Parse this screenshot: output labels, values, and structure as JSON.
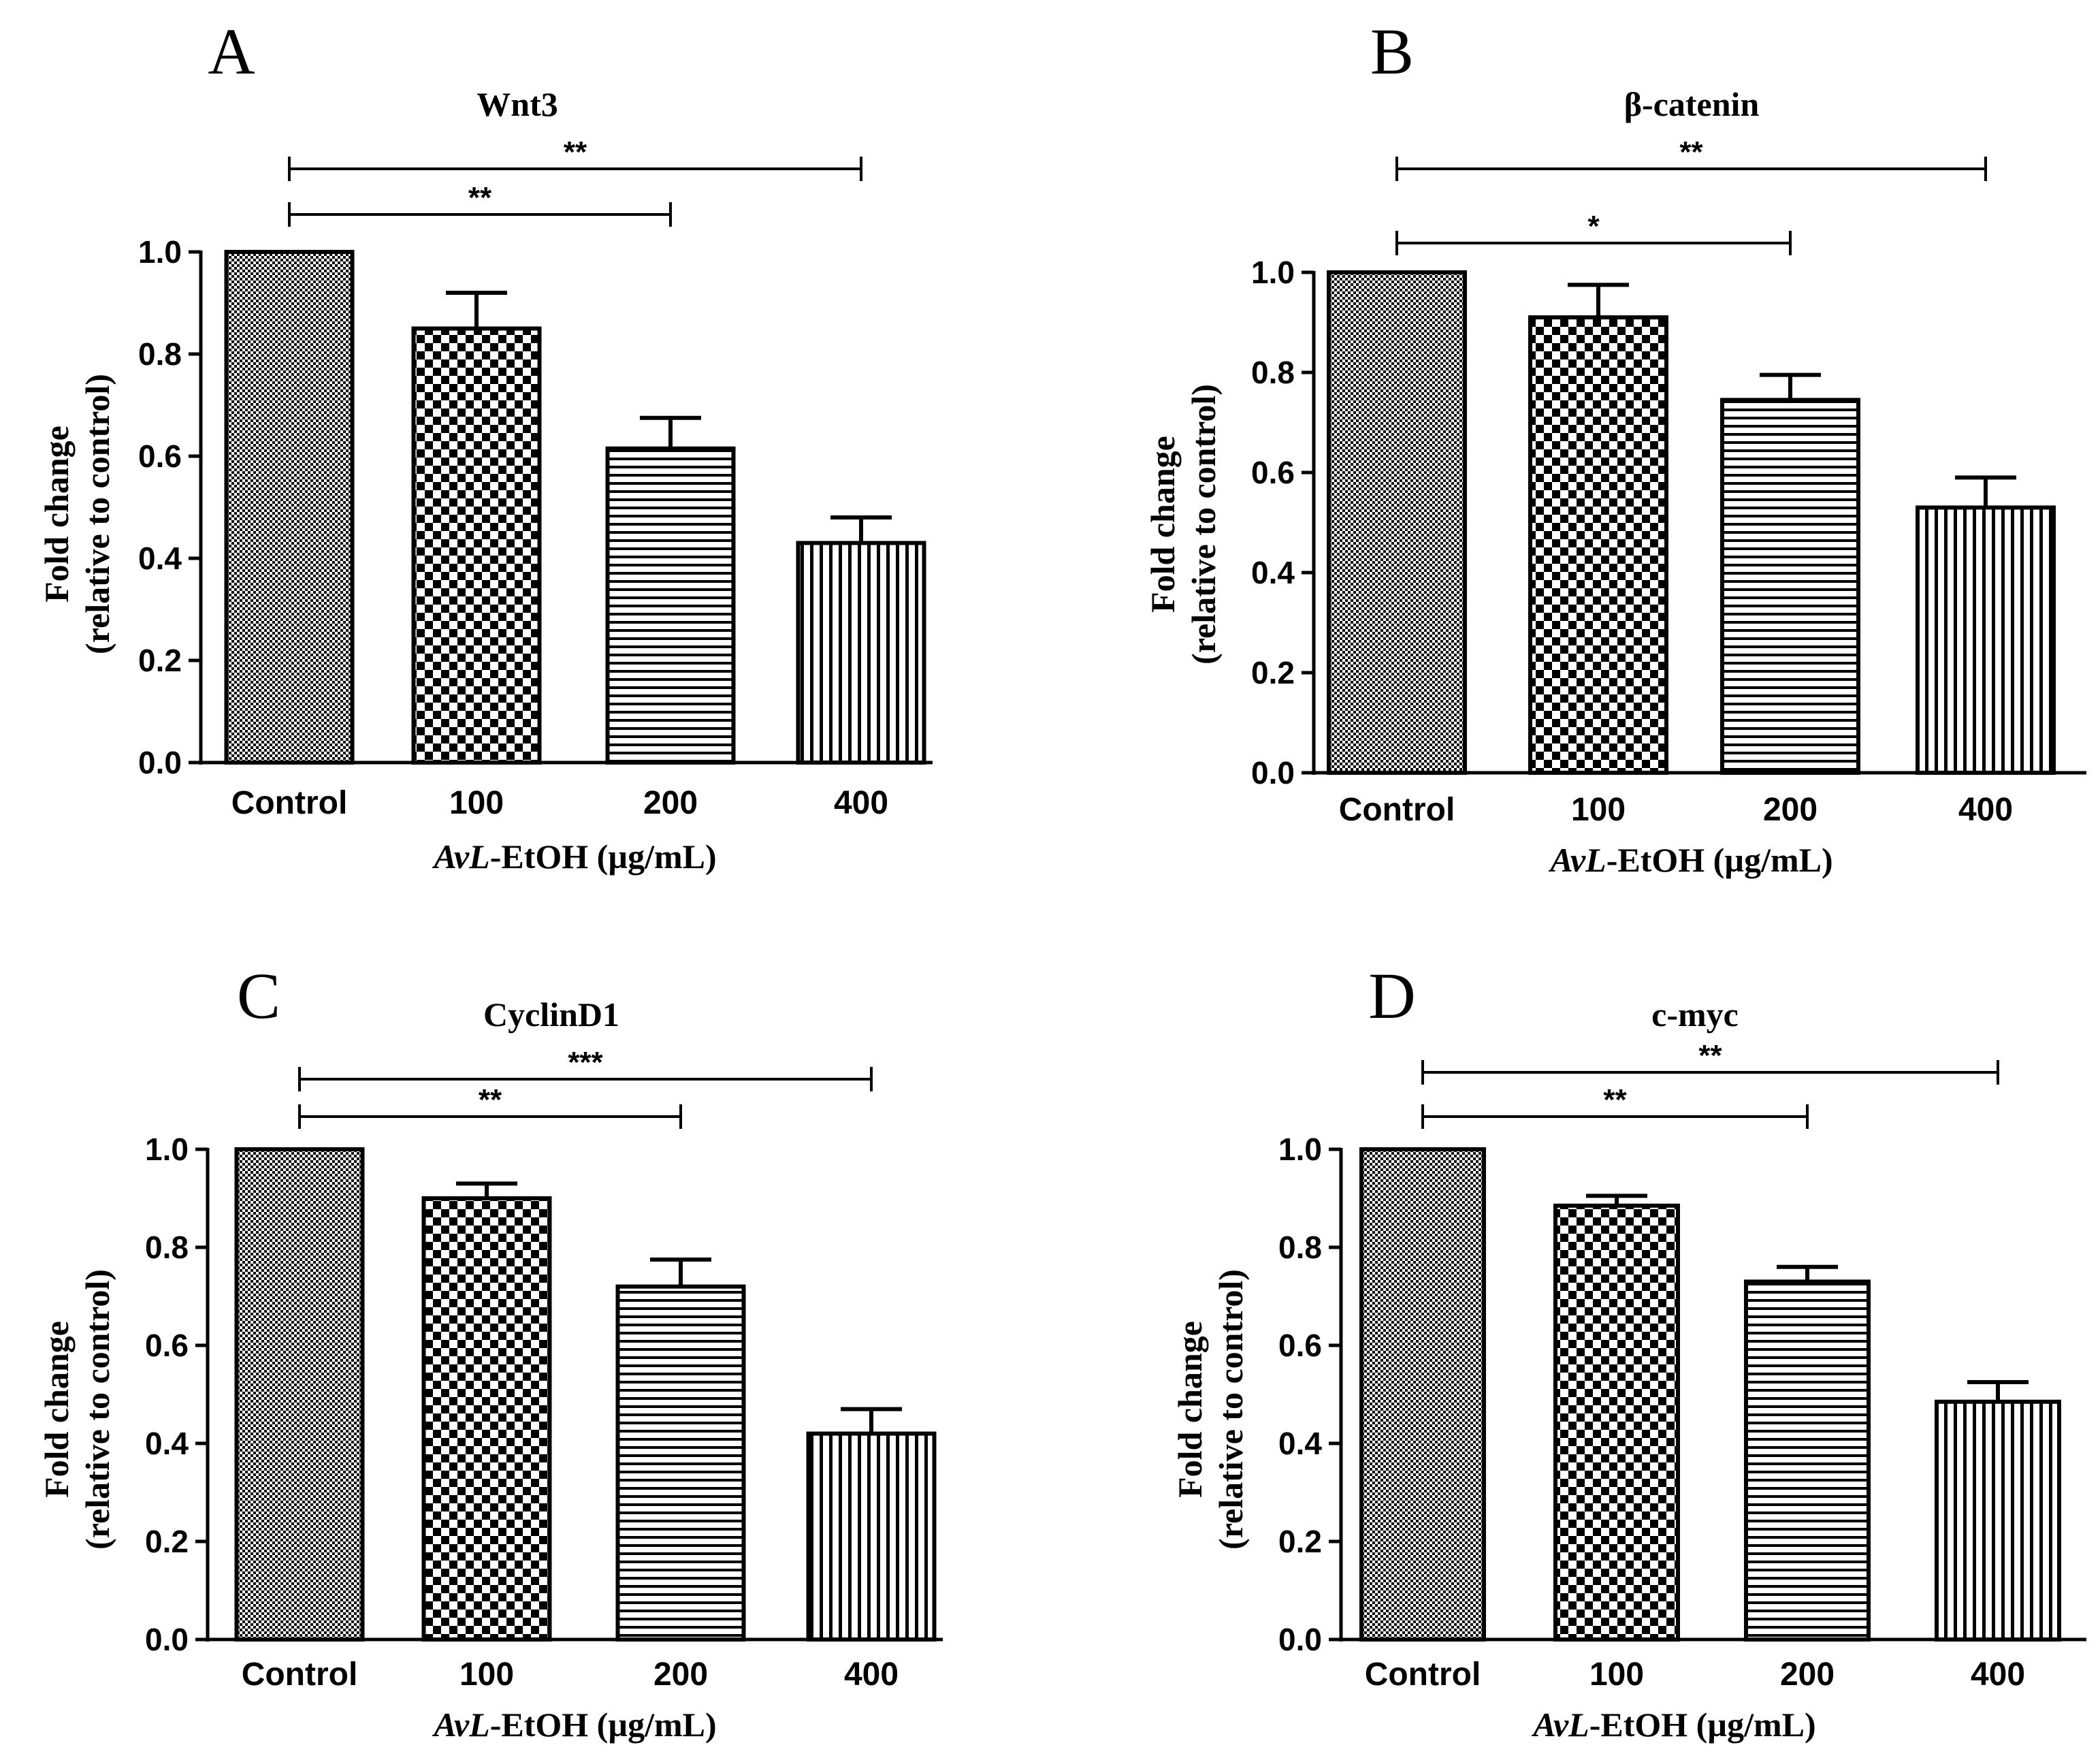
{
  "figure": {
    "background": "#ffffff",
    "bar_stroke_color": "#000000"
  },
  "chart_data": [
    {
      "panel": "A",
      "type": "bar",
      "title": "Wnt3",
      "categories": [
        "Control",
        "100",
        "200",
        "400"
      ],
      "values": [
        1.0,
        0.85,
        0.615,
        0.43
      ],
      "errors": [
        0.0,
        0.07,
        0.06,
        0.05
      ],
      "patterns": [
        "fine-checker",
        "checker",
        "horizontal-stripes",
        "vertical-stripes"
      ],
      "ylim": [
        0,
        1.0
      ],
      "yticks": [
        "0.0",
        "0.2",
        "0.4",
        "0.6",
        "0.8",
        "1.0"
      ],
      "ylabel_line1": "Fold change",
      "ylabel_line2": "(relative to control)",
      "xlabel_italic": "AvL",
      "xlabel_rest": "-EtOH (µg/mL)",
      "significance": [
        {
          "from": "Control",
          "to": "200",
          "label": "**"
        },
        {
          "from": "Control",
          "to": "400",
          "label": "**"
        }
      ]
    },
    {
      "panel": "B",
      "type": "bar",
      "title": "β-catenin",
      "categories": [
        "Control",
        "100",
        "200",
        "400"
      ],
      "values": [
        1.0,
        0.91,
        0.745,
        0.53
      ],
      "errors": [
        0.0,
        0.065,
        0.05,
        0.06
      ],
      "patterns": [
        "fine-checker",
        "checker",
        "horizontal-stripes",
        "vertical-stripes"
      ],
      "ylim": [
        0,
        1.0
      ],
      "yticks": [
        "0.0",
        "0.2",
        "0.4",
        "0.6",
        "0.8",
        "1.0"
      ],
      "ylabel_line1": "Fold change",
      "ylabel_line2": "(relative to control)",
      "xlabel_italic": "AvL",
      "xlabel_rest": "-EtOH (µg/mL)",
      "significance": [
        {
          "from": "Control",
          "to": "200",
          "label": "*"
        },
        {
          "from": "Control",
          "to": "400",
          "label": "**"
        }
      ]
    },
    {
      "panel": "C",
      "type": "bar",
      "title": "CyclinD1",
      "categories": [
        "Control",
        "100",
        "200",
        "400"
      ],
      "values": [
        1.0,
        0.9,
        0.72,
        0.42
      ],
      "errors": [
        0.0,
        0.03,
        0.055,
        0.05
      ],
      "patterns": [
        "fine-checker",
        "checker",
        "horizontal-stripes",
        "vertical-stripes"
      ],
      "ylim": [
        0,
        1.0
      ],
      "yticks": [
        "0.0",
        "0.2",
        "0.4",
        "0.6",
        "0.8",
        "1.0"
      ],
      "ylabel_line1": "Fold change",
      "ylabel_line2": "(relative to control)",
      "xlabel_italic": "AvL",
      "xlabel_rest": "-EtOH (µg/mL)",
      "significance": [
        {
          "from": "Control",
          "to": "200",
          "label": "**"
        },
        {
          "from": "Control",
          "to": "400",
          "label": "***"
        }
      ]
    },
    {
      "panel": "D",
      "type": "bar",
      "title": "c-myc",
      "categories": [
        "Control",
        "100",
        "200",
        "400"
      ],
      "values": [
        1.0,
        0.885,
        0.73,
        0.485
      ],
      "errors": [
        0.0,
        0.02,
        0.03,
        0.04
      ],
      "patterns": [
        "fine-checker",
        "checker",
        "horizontal-stripes",
        "vertical-stripes"
      ],
      "ylim": [
        0,
        1.0
      ],
      "yticks": [
        "0.0",
        "0.2",
        "0.4",
        "0.6",
        "0.8",
        "1.0"
      ],
      "ylabel_line1": "Fold change",
      "ylabel_line2": "(relative to control)",
      "xlabel_italic": "AvL",
      "xlabel_rest": "-EtOH (µg/mL)",
      "significance": [
        {
          "from": "Control",
          "to": "200",
          "label": "**"
        },
        {
          "from": "Control",
          "to": "400",
          "label": "**"
        }
      ]
    }
  ]
}
